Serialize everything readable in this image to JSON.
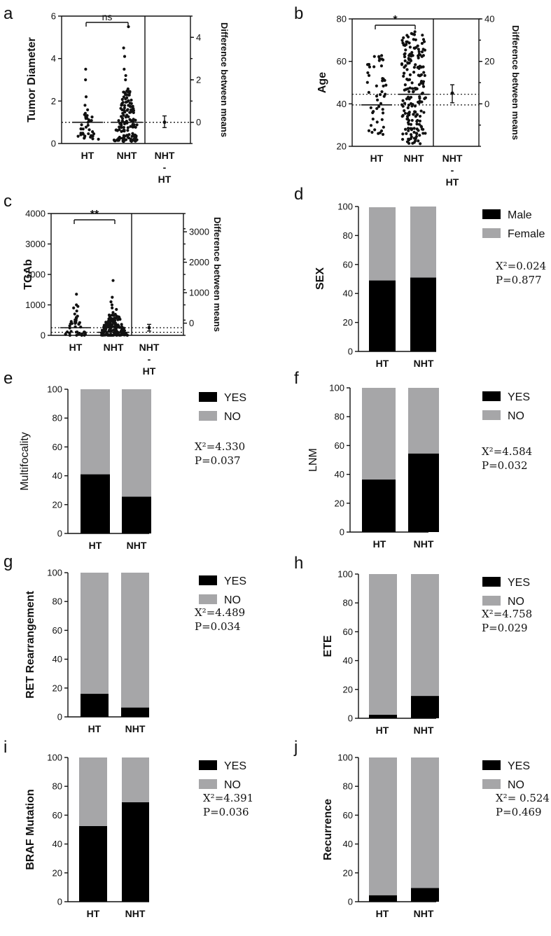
{
  "colors": {
    "yes": "#000000",
    "no": "#a6a6a8",
    "axis": "#111111",
    "dot": "#111111"
  },
  "chart_data": [
    {
      "id": "a",
      "type": "scatter",
      "label": "a",
      "ylabel": "Tumor Diameter",
      "right_label": "Difference between means",
      "categories": [
        "HT",
        "NHT"
      ],
      "est_category": "NHT\n-\nHT",
      "ylim": [
        0,
        6
      ],
      "yticks": [
        0,
        2,
        4,
        6
      ],
      "right_ylim": [
        -1,
        5
      ],
      "right_ticks": [
        0,
        2,
        4
      ],
      "significance": "ns",
      "series": [
        {
          "name": "HT",
          "n": 40,
          "min": 0.2,
          "max": 3.5,
          "mean": 1.0,
          "outliers": [
            3.5,
            3.0,
            2.2,
            1.8
          ]
        },
        {
          "name": "NHT",
          "n": 150,
          "min": 0.1,
          "max": 5.5,
          "mean": 1.0,
          "outliers": [
            5.5,
            4.5,
            4.1,
            3.5,
            3.2,
            3.0
          ]
        }
      ],
      "estimation": {
        "mean": 0.0,
        "ci": [
          -0.25,
          0.3
        ]
      }
    },
    {
      "id": "b",
      "type": "scatter",
      "label": "b",
      "ylabel": "Age",
      "right_label": "Difference between means",
      "categories": [
        "HT",
        "NHT"
      ],
      "est_category": "NHT\n-\nHT",
      "ylim": [
        20,
        80
      ],
      "yticks": [
        20,
        40,
        60,
        80
      ],
      "right_ylim": [
        -20,
        40
      ],
      "right_ticks": [
        0,
        20,
        40
      ],
      "significance": "*",
      "series": [
        {
          "name": "HT",
          "n": 50,
          "min": 25,
          "max": 63,
          "mean": 39.5
        },
        {
          "name": "NHT",
          "n": 200,
          "min": 21,
          "max": 74,
          "mean": 44.5
        }
      ],
      "estimation": {
        "mean": 5.0,
        "ci": [
          0.5,
          9.0
        ]
      }
    },
    {
      "id": "c",
      "type": "scatter",
      "label": "c",
      "ylabel": "TGAb",
      "right_label": "Difference between means",
      "categories": [
        "HT",
        "NHT"
      ],
      "est_category": "NHT\n-\nHT",
      "ylim": [
        0,
        4000
      ],
      "yticks": [
        0,
        1000,
        2000,
        3000,
        4000
      ],
      "right_ylim": [
        -400,
        3600
      ],
      "right_ticks": [
        0,
        1000,
        2000,
        3000
      ],
      "significance": "**",
      "series": [
        {
          "name": "HT",
          "n": 45,
          "min": 0,
          "max": 1350,
          "mean": 250,
          "outliers": [
            1350,
            1000,
            950,
            900,
            800,
            700
          ]
        },
        {
          "name": "NHT",
          "n": 160,
          "min": 0,
          "max": 1800,
          "mean": 100,
          "outliers": [
            1800,
            1250,
            1100,
            1000,
            900,
            850,
            750
          ]
        }
      ],
      "estimation": {
        "mean": -150,
        "ci": [
          -260,
          -40
        ]
      }
    },
    {
      "id": "d",
      "type": "bar",
      "stacked": true,
      "label": "d",
      "ylabel": "SEX",
      "categories": [
        "HT",
        "NHT"
      ],
      "ylim": [
        0,
        100
      ],
      "yticks": [
        0,
        20,
        40,
        60,
        80,
        100
      ],
      "series": [
        {
          "name": "Male",
          "values": [
            49,
            51
          ]
        },
        {
          "name": "Female",
          "values": [
            50.5,
            49
          ]
        }
      ],
      "legend": [
        "Male",
        "Female"
      ],
      "chi": "X²=0.024",
      "p": "P=0.877"
    },
    {
      "id": "e",
      "type": "bar",
      "stacked": true,
      "label": "e",
      "ylabel": "Multifocality",
      "categories": [
        "HT",
        "NHT"
      ],
      "ylim": [
        0,
        100
      ],
      "yticks": [
        0,
        20,
        40,
        60,
        80,
        100
      ],
      "series": [
        {
          "name": "YES",
          "values": [
            41,
            25.5
          ]
        },
        {
          "name": "NO",
          "values": [
            59,
            74.5
          ]
        }
      ],
      "legend": [
        "YES",
        "NO"
      ],
      "chi": "X²=4.330",
      "p": "P=0.037"
    },
    {
      "id": "f",
      "type": "bar",
      "stacked": true,
      "label": "f",
      "ylabel": "LNM",
      "categories": [
        "HT",
        "NHT"
      ],
      "ylim": [
        0,
        100
      ],
      "yticks": [
        0,
        20,
        40,
        60,
        80,
        100
      ],
      "series": [
        {
          "name": "YES",
          "values": [
            36.5,
            54.5
          ]
        },
        {
          "name": "NO",
          "values": [
            63.5,
            45.5
          ]
        }
      ],
      "legend": [
        "YES",
        "NO"
      ],
      "chi": "X²=4.584",
      "p": "P=0.032"
    },
    {
      "id": "g",
      "type": "bar",
      "stacked": true,
      "label": "g",
      "ylabel": "RET Rearrangement",
      "categories": [
        "HT",
        "NHT"
      ],
      "ylim": [
        0,
        100
      ],
      "yticks": [
        0,
        20,
        40,
        60,
        80,
        100
      ],
      "series": [
        {
          "name": "YES",
          "values": [
            16,
            6.5
          ]
        },
        {
          "name": "NO",
          "values": [
            84,
            93.5
          ]
        }
      ],
      "legend": [
        "YES",
        "NO"
      ],
      "chi": "X²=4.489",
      "p": "P=0.034"
    },
    {
      "id": "h",
      "type": "bar",
      "stacked": true,
      "label": "h",
      "ylabel": "ETE",
      "categories": [
        "HT",
        "NHT"
      ],
      "ylim": [
        0,
        100
      ],
      "yticks": [
        0,
        20,
        40,
        60,
        80,
        100
      ],
      "series": [
        {
          "name": "YES",
          "values": [
            2.5,
            15.5
          ]
        },
        {
          "name": "NO",
          "values": [
            97.5,
            84.5
          ]
        }
      ],
      "legend": [
        "YES",
        "NO"
      ],
      "chi": "X²=4.758",
      "p": "P=0.029"
    },
    {
      "id": "i",
      "type": "bar",
      "stacked": true,
      "label": "i",
      "ylabel": "BRAF Mutation",
      "categories": [
        "HT",
        "NHT"
      ],
      "ylim": [
        0,
        100
      ],
      "yticks": [
        0,
        20,
        40,
        60,
        80,
        100
      ],
      "series": [
        {
          "name": "YES",
          "values": [
            52.5,
            69
          ]
        },
        {
          "name": "NO",
          "values": [
            47.5,
            31
          ]
        }
      ],
      "legend": [
        "YES",
        "NO"
      ],
      "chi": "X²=4.391",
      "p": "P=0.036"
    },
    {
      "id": "j",
      "type": "bar",
      "stacked": true,
      "label": "j",
      "ylabel": "Recurrence",
      "categories": [
        "HT",
        "NHT"
      ],
      "ylim": [
        0,
        100
      ],
      "yticks": [
        0,
        20,
        40,
        60,
        80,
        100
      ],
      "series": [
        {
          "name": "YES",
          "values": [
            4.5,
            9.5
          ]
        },
        {
          "name": "NO",
          "values": [
            95.5,
            90.5
          ]
        }
      ],
      "legend": [
        "YES",
        "NO"
      ],
      "chi": "X²= 0.524",
      "p": "P=0.469"
    }
  ]
}
